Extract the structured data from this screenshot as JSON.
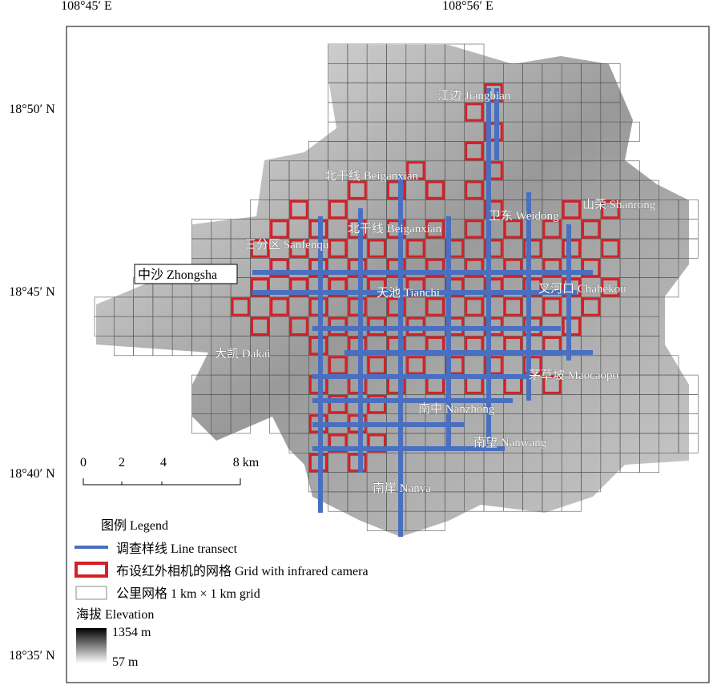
{
  "axes": {
    "top": [
      "108°45′ E",
      "108°56′ E"
    ],
    "left": [
      "18°50′ N",
      "18°45′ N",
      "18°40′ N",
      "18°35′ N"
    ]
  },
  "places": [
    "江边 Jiangbian",
    "北干线 Beiganxian",
    "山荣 Shanrong",
    "卫东 Weidong",
    "北干线 Beiganxian",
    "三分区 Sanfenqu",
    "中沙 Zhongsha",
    "天池 Tianchi",
    "叉河口 Chahekou",
    "大凯 Dakai",
    "茅草坡 Maocaopo",
    "南中 Nanzhong",
    "南望 Nanwang",
    "南崖 Nanya"
  ],
  "scale": [
    "0",
    "2",
    "4",
    "8 km"
  ],
  "legend": {
    "title": "图例 Legend",
    "items": [
      "调查样线 Line transect",
      "布设红外相机的网格 Grid with infrared camera",
      "公里网格 1 km × 1 km grid"
    ],
    "elevation_title": "海拔 Elevation",
    "high": "1354 m",
    "low": "57 m"
  }
}
